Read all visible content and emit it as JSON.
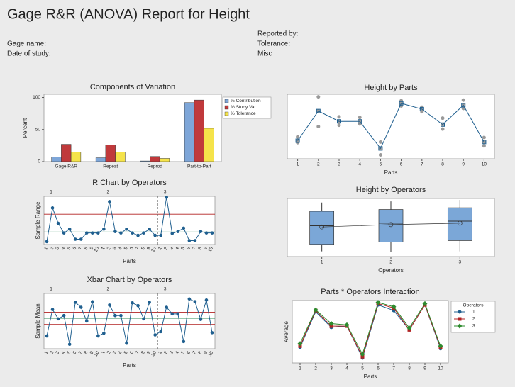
{
  "header": {
    "title": "Gage R&R (ANOVA) Report for Height",
    "fields_left": [
      "Gage name:",
      "Date of study:"
    ],
    "fields_right": [
      "Reported by:",
      "Tolerance:",
      "Misc"
    ]
  },
  "chart_data": [
    {
      "type": "bar",
      "title": "Components of Variation",
      "ylabel": "Percent",
      "categories": [
        "Gage R&R",
        "Repeat",
        "Reprod",
        "Part-to-Part"
      ],
      "series": [
        {
          "name": "% Contribution",
          "color": "#7ea6d8",
          "values": [
            7,
            6,
            1,
            92
          ]
        },
        {
          "name": "% Study Var",
          "color": "#c0393b",
          "values": [
            27,
            26,
            8,
            96
          ]
        },
        {
          "name": "% Tolerance",
          "color": "#f5e34a",
          "values": [
            15,
            15,
            5,
            52
          ]
        }
      ],
      "ylim": [
        0,
        105
      ],
      "yticks": [
        0,
        50,
        100
      ],
      "legend": "right"
    },
    {
      "type": "control",
      "title": "R Chart by Operators",
      "ylabel": "Sample Range",
      "xlabel": "Parts",
      "groups": [
        "1",
        "2",
        "3"
      ],
      "categories": [
        "1",
        "2",
        "3",
        "4",
        "5",
        "6",
        "7",
        "8",
        "9",
        "10"
      ],
      "values": [
        [
          0.6,
          7.6,
          4.4,
          2.4,
          3.2,
          1.1,
          1.1,
          2.4,
          2.4,
          2.4
        ],
        [
          3.2,
          8.9,
          2.7,
          2.4,
          3.2,
          2.4,
          1.9,
          2.4,
          3.2,
          1.9
        ],
        [
          1.9,
          9.8,
          2.3,
          2.7,
          3.4,
          0.8,
          0.8,
          2.7,
          2.4,
          2.4
        ]
      ],
      "limits": [
        6.3,
        2.6,
        0.5
      ],
      "limit_colors": [
        "#b22222",
        "#2e8b57",
        "#b22222"
      ],
      "color": "#1f5f8f",
      "ylim": [
        0,
        10
      ]
    },
    {
      "type": "dotline",
      "title": "Height by Parts",
      "xlabel": "Parts",
      "categories": [
        "1",
        "2",
        "3",
        "4",
        "5",
        "6",
        "7",
        "8",
        "9",
        "10"
      ],
      "values": [
        2.8,
        7.4,
        5.8,
        5.8,
        1.6,
        8.6,
        7.7,
        5.3,
        8.3,
        2.6
      ],
      "observations": [
        [
          2.5,
          2.8,
          3.4
        ],
        [
          5.0,
          7.4,
          9.6
        ],
        [
          5.2,
          5.8,
          6.5
        ],
        [
          5.4,
          5.8,
          6.4
        ],
        [
          0.6,
          1.6,
          2.6
        ],
        [
          8.2,
          8.6,
          9.0
        ],
        [
          7.3,
          7.7,
          8.0
        ],
        [
          4.6,
          5.3,
          6.3
        ],
        [
          7.8,
          8.3,
          9.1
        ],
        [
          2.0,
          2.6,
          3.3
        ]
      ],
      "color": "#1f5f8f",
      "observation_color": "#9a9a9a",
      "ylim": [
        0,
        10
      ]
    },
    {
      "type": "box",
      "title": "Height by Operators",
      "xlabel": "Operators",
      "categories": [
        "1",
        "2",
        "3"
      ],
      "min": [
        0.9,
        0.75,
        0.9
      ],
      "q1": [
        2.1,
        2.5,
        2.75
      ],
      "median": [
        5.3,
        5.75,
        6.1
      ],
      "q3": [
        7.8,
        8.1,
        8.4
      ],
      "max": [
        9.3,
        9.5,
        9.75
      ],
      "mean": [
        5.1,
        5.5,
        5.75
      ],
      "color": "#7ba7d7",
      "ylim": [
        0,
        10
      ]
    },
    {
      "type": "control",
      "title": "Xbar Chart by Operators",
      "ylabel": "Sample Mean",
      "xlabel": "Parts",
      "groups": [
        "1",
        "2",
        "3"
      ],
      "categories": [
        "1",
        "2",
        "3",
        "4",
        "5",
        "6",
        "7",
        "8",
        "9",
        "10"
      ],
      "values": [
        [
          2.3,
          7.1,
          5.4,
          6.0,
          0.8,
          8.4,
          7.5,
          5.0,
          8.5,
          2.3
        ],
        [
          2.8,
          7.9,
          6.0,
          6.0,
          1.0,
          8.3,
          7.8,
          5.4,
          8.4,
          2.5
        ],
        [
          3.1,
          7.5,
          6.3,
          6.3,
          1.3,
          9.0,
          8.5,
          5.3,
          8.8,
          2.9
        ]
      ],
      "limits": [
        6.6,
        5.5,
        4.4
      ],
      "limit_colors": [
        "#b22222",
        "#2e8b57",
        "#b22222"
      ],
      "color": "#1f5f8f",
      "ylim": [
        0,
        10
      ]
    },
    {
      "type": "line",
      "title": "Parts * Operators Interaction",
      "xlabel": "Parts",
      "ylabel": "Average",
      "categories": [
        "1",
        "2",
        "3",
        "4",
        "5",
        "6",
        "7",
        "8",
        "9",
        "10"
      ],
      "legend_title": "Operators",
      "legend": "right",
      "series": [
        {
          "name": "1",
          "color": "#1f5f8f",
          "values": [
            2.5,
            8.2,
            5.7,
            5.9,
            0.8,
            9.3,
            8.4,
            5.3,
            9.3,
            2.3
          ]
        },
        {
          "name": "2",
          "color": "#b22222",
          "values": [
            2.7,
            8.4,
            5.9,
            5.9,
            1.0,
            9.5,
            8.8,
            5.3,
            9.3,
            2.5
          ]
        },
        {
          "name": "3",
          "color": "#2e8b2e",
          "values": [
            3.1,
            8.5,
            6.3,
            6.1,
            1.4,
            9.7,
            9.0,
            5.6,
            9.5,
            2.7
          ]
        }
      ],
      "ylim": [
        0,
        10
      ]
    }
  ]
}
